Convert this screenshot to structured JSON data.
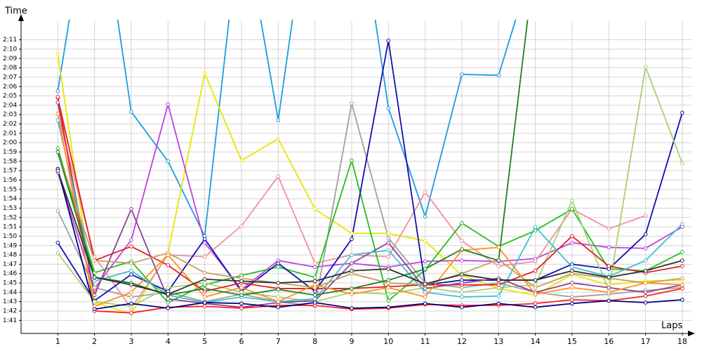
{
  "chart_data": {
    "type": "line",
    "y_label": "Time",
    "x_label": "Laps",
    "x": [
      1,
      2,
      3,
      4,
      5,
      6,
      7,
      8,
      9,
      10,
      11,
      12,
      13,
      14,
      15,
      16,
      17,
      18
    ],
    "xlim": [
      0,
      18.25
    ],
    "xticks": [
      1,
      2,
      3,
      4,
      5,
      6,
      7,
      8,
      9,
      10,
      11,
      12,
      13,
      14,
      15,
      16,
      17,
      18
    ],
    "ylim": [
      99.6,
      133
    ],
    "yticks": [
      {
        "value": 101,
        "label": "1:41"
      },
      {
        "value": 102,
        "label": "1:42"
      },
      {
        "value": 103,
        "label": "1:43"
      },
      {
        "value": 104,
        "label": "1:44"
      },
      {
        "value": 105,
        "label": "1:45"
      },
      {
        "value": 106,
        "label": "1:46"
      },
      {
        "value": 107,
        "label": "1:47"
      },
      {
        "value": 108,
        "label": "1:48"
      },
      {
        "value": 109,
        "label": "1:49"
      },
      {
        "value": 110,
        "label": "1:50"
      },
      {
        "value": 111,
        "label": "1:51"
      },
      {
        "value": 112,
        "label": "1:52"
      },
      {
        "value": 113,
        "label": "1:53"
      },
      {
        "value": 114,
        "label": "1:54"
      },
      {
        "value": 115,
        "label": "1:55"
      },
      {
        "value": 116,
        "label": "1:56"
      },
      {
        "value": 117,
        "label": "1:57"
      },
      {
        "value": 118,
        "label": "1:58"
      },
      {
        "value": 119,
        "label": "1:59"
      },
      {
        "value": 120,
        "label": "2:00"
      },
      {
        "value": 121,
        "label": "2:01"
      },
      {
        "value": 122,
        "label": "2:02"
      },
      {
        "value": 123,
        "label": "2:03"
      },
      {
        "value": 124,
        "label": "2:04"
      },
      {
        "value": 125,
        "label": "2:05"
      },
      {
        "value": 126,
        "label": "2:06"
      },
      {
        "value": 127,
        "label": "2:07"
      },
      {
        "value": 128,
        "label": "2:08"
      },
      {
        "value": 129,
        "label": "2:09"
      },
      {
        "value": 130,
        "label": "2:10"
      },
      {
        "value": 131,
        "label": "2:11"
      }
    ],
    "grid": true,
    "series": [
      {
        "color": "#1e9be0",
        "values": [
          125.5,
          150,
          123.3,
          118,
          110,
          145,
          122.4,
          150,
          150,
          123.7,
          112.1,
          127.3,
          127.2,
          140,
          null,
          null,
          null,
          null
        ]
      },
      {
        "color": "#e6e600",
        "values": [
          129.5,
          102.9,
          101.7,
          108.2,
          127.4,
          118.1,
          120.4,
          112.9,
          110.3,
          110.3,
          109.5,
          105.8,
          104.4,
          103.7,
          105.9,
          104.8,
          105.2,
          105.3
        ]
      },
      {
        "color": "#c040e0",
        "values": [
          116.8,
          104.4,
          109.6,
          124.1,
          109.3,
          104.3,
          107.4,
          106.7,
          107.1,
          106.7,
          107.3,
          107.4,
          107.3,
          107.6,
          109.3,
          108.8,
          108.7,
          111
        ]
      },
      {
        "color": "#f090a0",
        "values": [
          123.1,
          107.8,
          102.3,
          108,
          107.8,
          111.1,
          116.4,
          107.1,
          108,
          107.8,
          114.7,
          109.5,
          106.8,
          107.3,
          112.9,
          110.8,
          112.2,
          null
        ]
      },
      {
        "color": "#a0a0a0",
        "values": [
          112.7,
          104.5,
          103.5,
          104,
          103,
          103.8,
          103,
          102.5,
          124.2,
          109.8,
          105,
          104.5,
          105,
          104,
          103.5,
          103.8,
          104.2,
          104.5
        ]
      },
      {
        "color": "#20c020",
        "values": [
          119.4,
          106.1,
          107.3,
          102.9,
          104.8,
          105.8,
          106.7,
          105.6,
          118.1,
          103.1,
          106.4,
          111.4,
          108.9,
          110.6,
          112.9,
          106.5,
          106.3,
          108.3
        ]
      },
      {
        "color": "#1010b0",
        "values": [
          109.3,
          103.1,
          105.9,
          104.1,
          109.7,
          104.1,
          107.1,
          104.1,
          109.7,
          130.9,
          104.8,
          105.3,
          105.3,
          105.3,
          107,
          106.5,
          110.2,
          123.2
        ]
      },
      {
        "color": "#a8d070",
        "values": [
          108.2,
          103,
          102.5,
          104.5,
          105,
          104,
          103.5,
          103,
          104,
          103.8,
          104.5,
          104,
          104.5,
          104.8,
          113.8,
          104.2,
          128.1,
          117.8
        ]
      },
      {
        "color": "#e02020",
        "values": [
          124.8,
          107.4,
          108.9,
          106.9,
          104.1,
          105,
          104.4,
          104.4,
          104.4,
          104.6,
          104.8,
          104.8,
          104.8,
          106.3,
          110,
          106.8,
          106.1,
          106.8
        ]
      },
      {
        "color": "#904090",
        "values": [
          124.3,
          103.7,
          112.9,
          103.3,
          102.8,
          102.4,
          102.9,
          103.1,
          107.1,
          109.3,
          104.4,
          105,
          105.5,
          104,
          105,
          104.5,
          104,
          104.8
        ]
      },
      {
        "color": "#ff2020",
        "values": [
          124.9,
          102,
          101.8,
          102.4,
          102.5,
          102.3,
          102.6,
          102.6,
          102.2,
          102.3,
          102.7,
          102.6,
          102.6,
          102.8,
          103.2,
          103.1,
          103.6,
          104.4
        ]
      },
      {
        "color": "#40c0d0",
        "values": [
          122.4,
          105.2,
          106.3,
          103.7,
          102.9,
          103.5,
          103,
          103.3,
          108,
          108.5,
          104,
          103.5,
          103.6,
          111,
          106.7,
          105.7,
          107.4,
          111.3
        ]
      },
      {
        "color": "#c0a060",
        "values": [
          119,
          107.4,
          107.1,
          108.2,
          106.1,
          105.5,
          105,
          104.5,
          106,
          105,
          104.8,
          106,
          107.5,
          104.5,
          106,
          105.5,
          105,
          105.5
        ]
      },
      {
        "color": "#ff9020",
        "values": [
          123.1,
          102.5,
          104,
          108,
          103.5,
          104.5,
          103,
          104.8,
          103.8,
          104.5,
          103.5,
          108.5,
          108.8,
          103.8,
          104.5,
          104,
          105,
          104.8
        ]
      },
      {
        "color": "#208020",
        "values": [
          119,
          105.6,
          105,
          103.7,
          104.4,
          103.7,
          104.3,
          103.7,
          104.4,
          105.3,
          106.5,
          108.6,
          107.4,
          140,
          null,
          null,
          null,
          null
        ]
      },
      {
        "color": "#000080",
        "values": [
          117.2,
          102.2,
          102.8,
          102.3,
          102.9,
          102.8,
          102.4,
          102.9,
          102.3,
          102.4,
          102.8,
          102.4,
          102.8,
          102.4,
          102.8,
          103.1,
          102.9,
          103.2
        ]
      },
      {
        "color": "#303030",
        "values": [
          117,
          105.6,
          104.8,
          103.8,
          105.4,
          105.2,
          105,
          105.2,
          106.3,
          106.5,
          104.9,
          105.9,
          105.3,
          105.3,
          106.3,
          105.6,
          106.3,
          107.4
        ]
      }
    ]
  }
}
